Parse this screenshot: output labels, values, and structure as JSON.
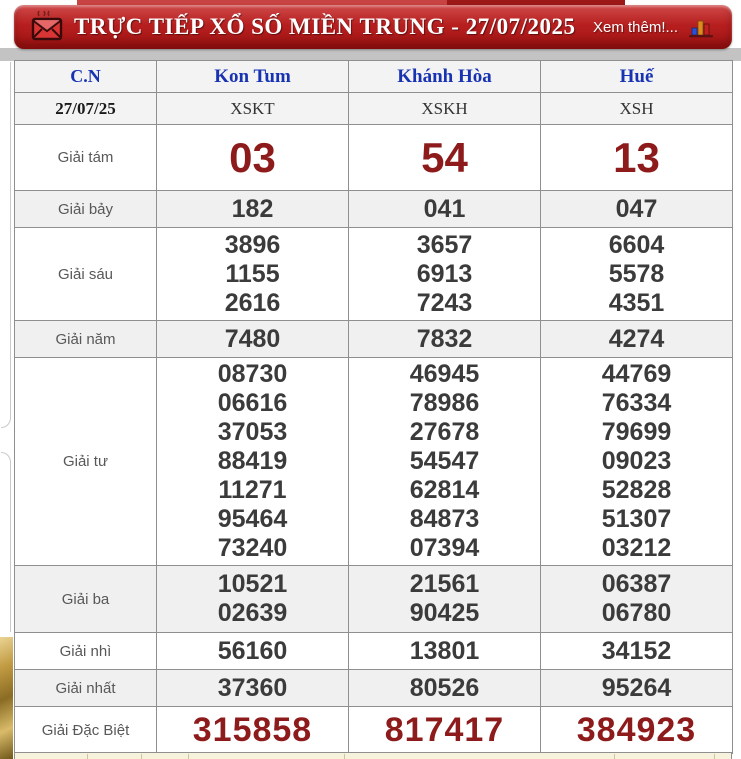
{
  "header": {
    "title": "TRỰC TIẾP XỔ SỐ MIỀN TRUNG - 27/07/2025",
    "more_label": "Xem thêm!...",
    "icons": {
      "left": "envelope-new-mail-icon",
      "right": "bar-chart-icon"
    },
    "colors": {
      "banner_red": "#b71f1f",
      "banner_red_light": "#cf4a4a",
      "title_text": "#ffffff"
    }
  },
  "table": {
    "columns": [
      {
        "header": "C.N",
        "sub": "27/07/25"
      },
      {
        "header": "Kon Tum",
        "sub": "XSKT"
      },
      {
        "header": "Khánh Hòa",
        "sub": "XSKH"
      },
      {
        "header": "Huế",
        "sub": "XSH"
      }
    ],
    "colors": {
      "header_text_blue": "#1733b2",
      "label_gray": "#585858",
      "number_dark": "#3b3b3b",
      "number_red": "#8e1b1b",
      "zebra_gray": "#f0f0f0",
      "border_gray": "#8f8f8f"
    },
    "rows": [
      {
        "label": "Giải tám",
        "kind": "r-eighth",
        "values": [
          [
            "03"
          ],
          [
            "54"
          ],
          [
            "13"
          ]
        ]
      },
      {
        "label": "Giải bảy",
        "kind": "r-single",
        "values": [
          [
            "182"
          ],
          [
            "041"
          ],
          [
            "047"
          ]
        ]
      },
      {
        "label": "Giải sáu",
        "kind": "r-triple",
        "values": [
          [
            "3896",
            "1155",
            "2616"
          ],
          [
            "3657",
            "6913",
            "7243"
          ],
          [
            "6604",
            "5578",
            "4351"
          ]
        ]
      },
      {
        "label": "Giải năm",
        "kind": "r-single",
        "values": [
          [
            "7480"
          ],
          [
            "7832"
          ],
          [
            "4274"
          ]
        ]
      },
      {
        "label": "Giải tư",
        "kind": "r-seven",
        "values": [
          [
            "08730",
            "06616",
            "37053",
            "88419",
            "11271",
            "95464",
            "73240"
          ],
          [
            "46945",
            "78986",
            "27678",
            "54547",
            "62814",
            "84873",
            "07394"
          ],
          [
            "44769",
            "76334",
            "79699",
            "09023",
            "52828",
            "51307",
            "03212"
          ]
        ]
      },
      {
        "label": "Giải ba",
        "kind": "r-double",
        "values": [
          [
            "10521",
            "02639"
          ],
          [
            "21561",
            "90425"
          ],
          [
            "06387",
            "06780"
          ]
        ]
      },
      {
        "label": "Giải nhì",
        "kind": "r-single",
        "values": [
          [
            "56160"
          ],
          [
            "13801"
          ],
          [
            "34152"
          ]
        ]
      },
      {
        "label": "Giải nhất",
        "kind": "r-single",
        "values": [
          [
            "37360"
          ],
          [
            "80526"
          ],
          [
            "95264"
          ]
        ]
      },
      {
        "label": "Giải Đặc Biệt",
        "kind": "r-special",
        "values": [
          [
            "315858"
          ],
          [
            "817417"
          ],
          [
            "384923"
          ]
        ]
      }
    ]
  }
}
